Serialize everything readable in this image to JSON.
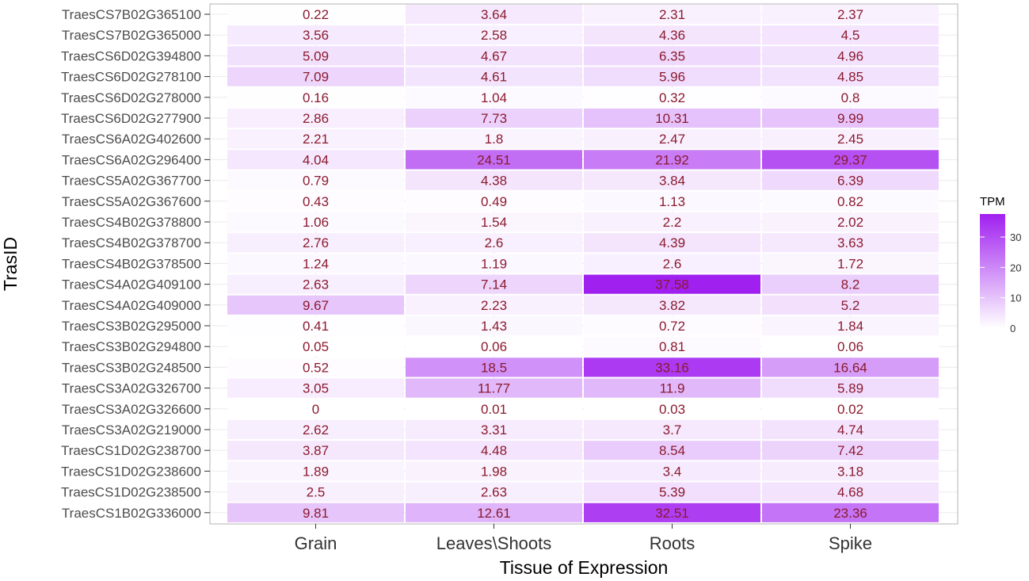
{
  "chart_data": {
    "type": "heatmap",
    "xlabel": "Tissue of Expression",
    "ylabel": "TrasID",
    "x_categories": [
      "Grain",
      "Leaves\\Shoots",
      "Roots",
      "Spike"
    ],
    "y_categories": [
      "TraesCS7B02G365100",
      "TraesCS7B02G365000",
      "TraesCS6D02G394800",
      "TraesCS6D02G278100",
      "TraesCS6D02G278000",
      "TraesCS6D02G277900",
      "TraesCS6A02G402600",
      "TraesCS6A02G296400",
      "TraesCS5A02G367700",
      "TraesCS5A02G367600",
      "TraesCS4B02G378800",
      "TraesCS4B02G378700",
      "TraesCS4B02G378500",
      "TraesCS4A02G409100",
      "TraesCS4A02G409000",
      "TraesCS3B02G295000",
      "TraesCS3B02G294800",
      "TraesCS3B02G248500",
      "TraesCS3A02G326700",
      "TraesCS3A02G326600",
      "TraesCS3A02G219000",
      "TraesCS1D02G238700",
      "TraesCS1D02G238600",
      "TraesCS1D02G238500",
      "TraesCS1B02G336000"
    ],
    "values": [
      [
        "0.22",
        "3.64",
        "2.31",
        "2.37"
      ],
      [
        "3.56",
        "2.58",
        "4.36",
        "4.5"
      ],
      [
        "5.09",
        "4.67",
        "6.35",
        "4.96"
      ],
      [
        "7.09",
        "4.61",
        "5.96",
        "4.85"
      ],
      [
        "0.16",
        "1.04",
        "0.32",
        "0.8"
      ],
      [
        "2.86",
        "7.73",
        "10.31",
        "9.99"
      ],
      [
        "2.21",
        "1.8",
        "2.47",
        "2.45"
      ],
      [
        "4.04",
        "24.51",
        "21.92",
        "29.37"
      ],
      [
        "0.79",
        "4.38",
        "3.84",
        "6.39"
      ],
      [
        "0.43",
        "0.49",
        "1.13",
        "0.82"
      ],
      [
        "1.06",
        "1.54",
        "2.2",
        "2.02"
      ],
      [
        "2.76",
        "2.6",
        "4.39",
        "3.63"
      ],
      [
        "1.24",
        "1.19",
        "2.6",
        "1.72"
      ],
      [
        "2.63",
        "7.14",
        "37.58",
        "8.2"
      ],
      [
        "9.67",
        "2.23",
        "3.82",
        "5.2"
      ],
      [
        "0.41",
        "1.43",
        "0.72",
        "1.84"
      ],
      [
        "0.05",
        "0.06",
        "0.81",
        "0.06"
      ],
      [
        "0.52",
        "18.5",
        "33.16",
        "16.64"
      ],
      [
        "3.05",
        "11.77",
        "11.9",
        "5.89"
      ],
      [
        "0",
        "0.01",
        "0.03",
        "0.02"
      ],
      [
        "2.62",
        "3.31",
        "3.7",
        "4.74"
      ],
      [
        "3.87",
        "4.48",
        "8.54",
        "7.42"
      ],
      [
        "1.89",
        "1.98",
        "3.4",
        "3.18"
      ],
      [
        "2.5",
        "2.63",
        "5.39",
        "4.68"
      ],
      [
        "9.81",
        "12.61",
        "32.51",
        "23.36"
      ]
    ],
    "legend": {
      "title": "TPM",
      "ticks": [
        "0",
        "10",
        "20",
        "30"
      ],
      "range": [
        0,
        37.58
      ],
      "placement": "right"
    },
    "colors": {
      "low": "#ffffff",
      "high": "#a020f0",
      "value_text": "#8b1a2e",
      "panel_border": "#b3b3b3",
      "grid": "#ebebeb"
    },
    "grid": true
  }
}
